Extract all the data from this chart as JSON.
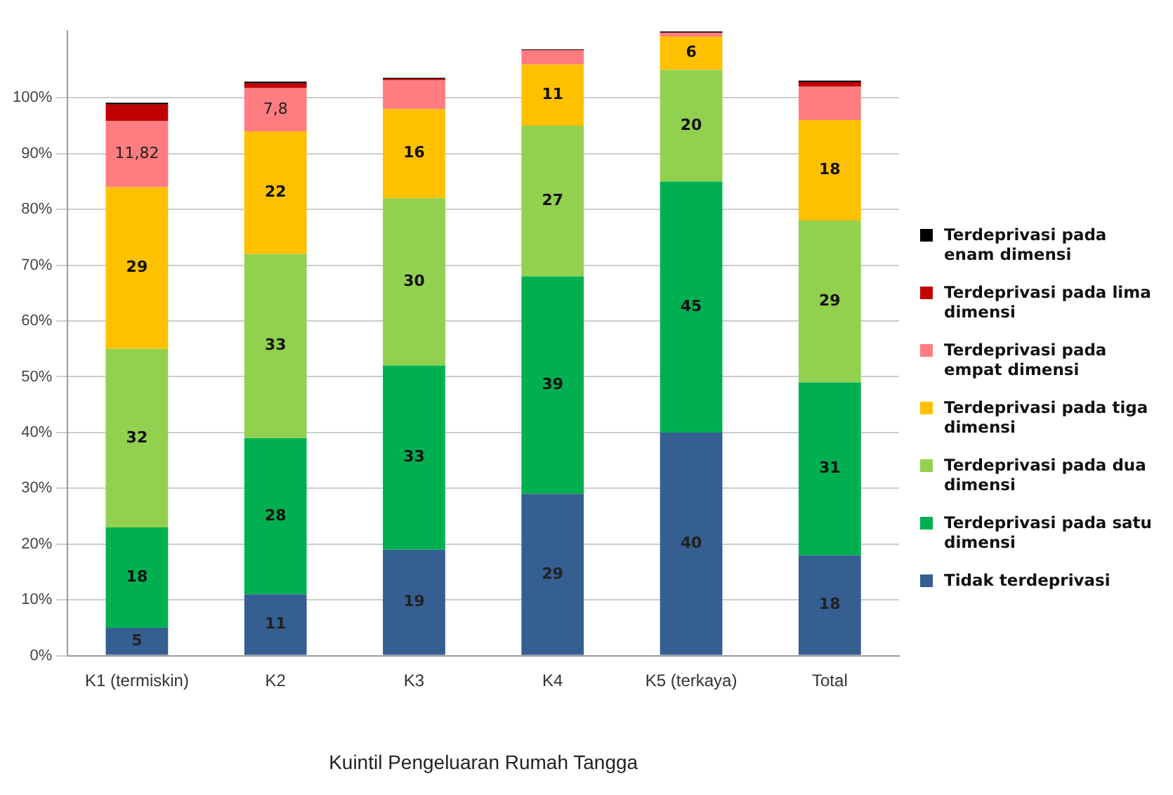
{
  "chart_data": {
    "type": "bar",
    "stacked": true,
    "xlabel": "Kuintil Pengeluaran Rumah Tangga",
    "categories": [
      "K1 (termiskin)",
      "K2",
      "K3",
      "K4",
      "K5 (terkaya)",
      "Total"
    ],
    "ylim": [
      0,
      112
    ],
    "yticks": [
      {
        "value": 0,
        "label": "0%"
      },
      {
        "value": 10,
        "label": "10%"
      },
      {
        "value": 20,
        "label": "20%"
      },
      {
        "value": 30,
        "label": "30%"
      },
      {
        "value": 40,
        "label": "40%"
      },
      {
        "value": 50,
        "label": "50%"
      },
      {
        "value": 60,
        "label": "60%"
      },
      {
        "value": 70,
        "label": "70%"
      },
      {
        "value": 80,
        "label": "80%"
      },
      {
        "value": 90,
        "label": "90%"
      },
      {
        "value": 100,
        "label": "100%"
      }
    ],
    "grid": "y",
    "legend": "right",
    "series": [
      {
        "name": "Tidak terdeprivasi",
        "color": "#365f91",
        "values": [
          5,
          11,
          19,
          29,
          40,
          18
        ],
        "value_labels": [
          "5",
          "11",
          "19",
          "29",
          "40",
          "18"
        ]
      },
      {
        "name": "Terdeprivasi pada satu dimensi",
        "color": "#00b050",
        "values": [
          18,
          28,
          33,
          39,
          45,
          31
        ],
        "value_labels": [
          "18",
          "28",
          "33",
          "39",
          "45",
          "31"
        ]
      },
      {
        "name": "Terdeprivasi pada dua dimensi",
        "color": "#92d050",
        "values": [
          32,
          33,
          30,
          27,
          20,
          29
        ],
        "value_labels": [
          "32",
          "33",
          "30",
          "27",
          "20",
          "29"
        ]
      },
      {
        "name": "Terdeprivasi pada tiga dimensi",
        "color": "#ffc000",
        "values": [
          29,
          22,
          16,
          11,
          6,
          18
        ],
        "value_labels": [
          "29",
          "22",
          "16",
          "11",
          "6",
          "18"
        ]
      },
      {
        "name": "Terdeprivasi pada empat dimensi",
        "color": "#ff7c80",
        "values": [
          11.82,
          7.8,
          5.2,
          2.5,
          0.6,
          6.0
        ],
        "value_labels": [
          "11,82",
          "7,8",
          null,
          null,
          null,
          null
        ]
      },
      {
        "name": "Terdeprivasi pada lima dimensi",
        "color": "#c00000",
        "values": [
          3.0,
          0.8,
          0.2,
          0.1,
          0.1,
          0.8
        ]
      },
      {
        "name": "Terdeprivasi pada enam dimensi",
        "color": "#000000",
        "values": [
          0.3,
          0.3,
          0.2,
          0.1,
          0.2,
          0.3
        ]
      }
    ]
  }
}
